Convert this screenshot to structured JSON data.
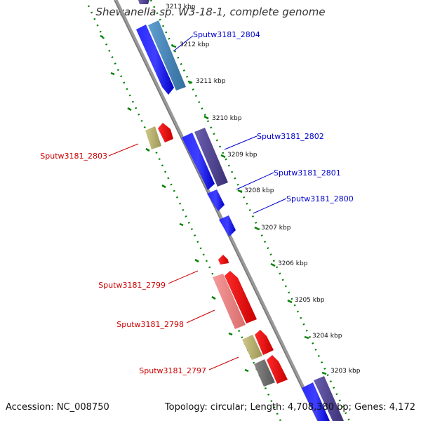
{
  "title": "Shewanella sp. W3-18-1, complete genome",
  "accession": "Accession: NC_008750",
  "summary": "Topology: circular; Length: 4,708,380 bp; Genes: 4,172",
  "ticks": [
    "3213 kbp",
    "3212 kbp",
    "3211 kbp",
    "3210 kbp",
    "3209 kbp",
    "3208 kbp",
    "3207 kbp",
    "3206 kbp",
    "3205 kbp",
    "3204 kbp",
    "3203 kbp"
  ],
  "genes_labels": {
    "g2804": "Sputw3181_2804",
    "g2803": "Sputw3181_2803",
    "g2802": "Sputw3181_2802",
    "g2801": "Sputw3181_2801",
    "g2800": "Sputw3181_2800",
    "g2799": "Sputw3181_2799",
    "g2798": "Sputw3181_2798",
    "g2797": "Sputw3181_2797"
  },
  "colors": {
    "cds_forward": "#0000ff",
    "cds_forward_alt": "#4682b4",
    "cds_forward_dark": "#483d8b",
    "cds_reverse": "#ff0000",
    "cds_reverse_light": "#f08080",
    "other": "#bdb76b",
    "other_gray": "#696969",
    "backbone": "#808080",
    "ruler": "#008000"
  }
}
